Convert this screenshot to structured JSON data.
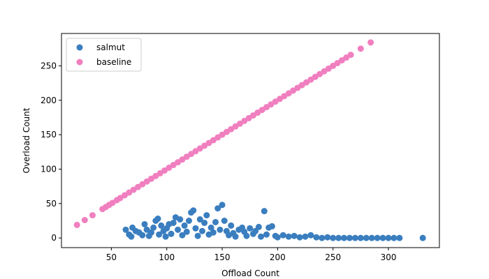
{
  "chart_data": {
    "type": "scatter",
    "title": "",
    "xlabel": "Offload Count",
    "ylabel": "Overload Count",
    "xlim": [
      5,
      346
    ],
    "ylim": [
      -14,
      297
    ],
    "xticks": [
      50,
      100,
      150,
      200,
      250,
      300
    ],
    "yticks": [
      0,
      50,
      100,
      150,
      200,
      250
    ],
    "grid": false,
    "legend": "top-left",
    "series": [
      {
        "name": "salmut",
        "color": "#3a7ebf",
        "points": [
          [
            63,
            12
          ],
          [
            66,
            5
          ],
          [
            68,
            2
          ],
          [
            69,
            15
          ],
          [
            72,
            10
          ],
          [
            75,
            8
          ],
          [
            78,
            4
          ],
          [
            80,
            20
          ],
          [
            82,
            12
          ],
          [
            84,
            3
          ],
          [
            86,
            8
          ],
          [
            88,
            15
          ],
          [
            90,
            25
          ],
          [
            92,
            28
          ],
          [
            93,
            5
          ],
          [
            95,
            18
          ],
          [
            97,
            10
          ],
          [
            99,
            2
          ],
          [
            100,
            14
          ],
          [
            102,
            20
          ],
          [
            104,
            6
          ],
          [
            106,
            22
          ],
          [
            108,
            30
          ],
          [
            110,
            12
          ],
          [
            112,
            27
          ],
          [
            114,
            4
          ],
          [
            116,
            18
          ],
          [
            118,
            9
          ],
          [
            120,
            25
          ],
          [
            122,
            37
          ],
          [
            124,
            40
          ],
          [
            126,
            14
          ],
          [
            128,
            3
          ],
          [
            130,
            27
          ],
          [
            132,
            10
          ],
          [
            134,
            22
          ],
          [
            136,
            33
          ],
          [
            138,
            5
          ],
          [
            140,
            15
          ],
          [
            142,
            8
          ],
          [
            144,
            23
          ],
          [
            146,
            43
          ],
          [
            148,
            12
          ],
          [
            150,
            48
          ],
          [
            152,
            25
          ],
          [
            154,
            10
          ],
          [
            156,
            4
          ],
          [
            158,
            18
          ],
          [
            160,
            7
          ],
          [
            162,
            2
          ],
          [
            165,
            12
          ],
          [
            168,
            15
          ],
          [
            170,
            9
          ],
          [
            172,
            3
          ],
          [
            175,
            14
          ],
          [
            178,
            6
          ],
          [
            180,
            10
          ],
          [
            183,
            16
          ],
          [
            185,
            2
          ],
          [
            188,
            39
          ],
          [
            190,
            5
          ],
          [
            192,
            15
          ],
          [
            195,
            17
          ],
          [
            198,
            3
          ],
          [
            200,
            1
          ],
          [
            205,
            4
          ],
          [
            210,
            2
          ],
          [
            215,
            3
          ],
          [
            220,
            1
          ],
          [
            225,
            2
          ],
          [
            230,
            4
          ],
          [
            235,
            1
          ],
          [
            240,
            0
          ],
          [
            245,
            1
          ],
          [
            250,
            0
          ],
          [
            255,
            0
          ],
          [
            260,
            0
          ],
          [
            265,
            0
          ],
          [
            270,
            0
          ],
          [
            275,
            0
          ],
          [
            280,
            0
          ],
          [
            285,
            0
          ],
          [
            290,
            0
          ],
          [
            295,
            0
          ],
          [
            300,
            0
          ],
          [
            305,
            0
          ],
          [
            310,
            0
          ],
          [
            331,
            0
          ]
        ]
      },
      {
        "name": "baseline",
        "color": "#f07fbf",
        "points": [
          [
            19,
            19
          ],
          [
            26,
            26
          ],
          [
            33,
            33
          ],
          [
            42,
            42
          ],
          [
            45,
            45
          ],
          [
            48,
            48
          ],
          [
            51,
            51
          ],
          [
            55,
            55
          ],
          [
            58,
            58
          ],
          [
            62,
            62
          ],
          [
            66,
            66
          ],
          [
            70,
            70
          ],
          [
            74,
            74
          ],
          [
            78,
            78
          ],
          [
            82,
            82
          ],
          [
            86,
            86
          ],
          [
            90,
            90
          ],
          [
            94,
            94
          ],
          [
            98,
            98
          ],
          [
            102,
            102
          ],
          [
            106,
            106
          ],
          [
            110,
            110
          ],
          [
            114,
            114
          ],
          [
            118,
            118
          ],
          [
            122,
            122
          ],
          [
            126,
            126
          ],
          [
            130,
            130
          ],
          [
            134,
            134
          ],
          [
            138,
            138
          ],
          [
            142,
            142
          ],
          [
            146,
            146
          ],
          [
            150,
            150
          ],
          [
            154,
            154
          ],
          [
            158,
            158
          ],
          [
            162,
            162
          ],
          [
            166,
            166
          ],
          [
            170,
            170
          ],
          [
            174,
            174
          ],
          [
            178,
            178
          ],
          [
            182,
            182
          ],
          [
            186,
            186
          ],
          [
            190,
            190
          ],
          [
            194,
            194
          ],
          [
            198,
            198
          ],
          [
            202,
            202
          ],
          [
            206,
            206
          ],
          [
            210,
            210
          ],
          [
            214,
            214
          ],
          [
            218,
            218
          ],
          [
            222,
            222
          ],
          [
            226,
            226
          ],
          [
            230,
            230
          ],
          [
            234,
            234
          ],
          [
            238,
            238
          ],
          [
            242,
            242
          ],
          [
            246,
            246
          ],
          [
            250,
            250
          ],
          [
            254,
            254
          ],
          [
            258,
            258
          ],
          [
            262,
            262
          ],
          [
            266,
            266
          ],
          [
            275,
            275
          ],
          [
            284,
            284
          ]
        ]
      }
    ]
  }
}
